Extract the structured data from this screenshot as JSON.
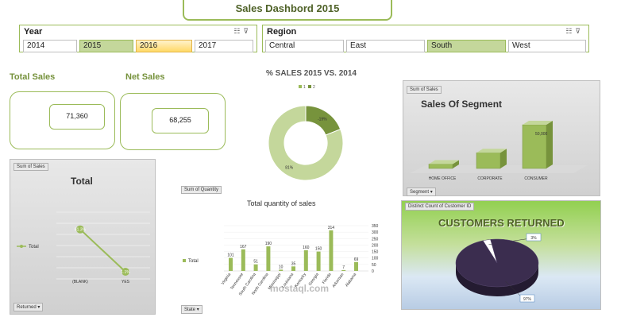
{
  "title": "Sales Dashbord  2015",
  "year_slicer": {
    "header": "Year",
    "items": [
      {
        "label": "2014",
        "state": "normal"
      },
      {
        "label": "2015",
        "state": "selected"
      },
      {
        "label": "2016",
        "state": "hover"
      },
      {
        "label": "2017",
        "state": "normal"
      }
    ]
  },
  "region_slicer": {
    "header": "Region",
    "items": [
      {
        "label": "Central",
        "state": "normal"
      },
      {
        "label": "East",
        "state": "normal"
      },
      {
        "label": "South",
        "state": "selected"
      },
      {
        "label": "West",
        "state": "normal"
      }
    ]
  },
  "kpis": {
    "total_sales_label": "Total Sales",
    "total_sales_value": "71,360",
    "net_sales_label": "Net Sales",
    "net_sales_value": "68,255"
  },
  "donut": {
    "title": "% SALES 2015 VS. 2014",
    "legend": [
      "1",
      "2"
    ],
    "labels": [
      "-19%",
      "81%"
    ]
  },
  "segment_panel": {
    "field_button": "Sum of Sales",
    "title": "Sales Of Segment",
    "filter_button": "Segment",
    "value_label": "50,000"
  },
  "total_panel": {
    "field_button": "Sum of Sales",
    "title": "Total",
    "legend": "Total",
    "point_labels": [
      "61.3%",
      "1.1%"
    ],
    "filter_button": "Returned"
  },
  "quantity_panel": {
    "field_button": "Sum of Quantity",
    "title": "Total  quantity of sales",
    "legend": "Total",
    "filter_button": "State"
  },
  "customers_panel": {
    "field_button": "Distinct Count of Customer ID",
    "title": "CUSTOMERS RETURNED",
    "labels": [
      "3%",
      "97%"
    ]
  },
  "watermark": "mostaql.com",
  "colors": {
    "accent": "#9bbb59",
    "accent_dark": "#76923c",
    "pie_dark": "#3b2d4f",
    "pie_light": "#ffffff"
  },
  "chart_data": [
    {
      "type": "pie",
      "subtype": "donut",
      "title": "% SALES 2015 VS. 2014",
      "categories": [
        "1",
        "2"
      ],
      "values": [
        19,
        81
      ],
      "data_labels": [
        "-19%",
        "81%"
      ]
    },
    {
      "type": "bar",
      "subtype": "3d-column",
      "title": "Sales Of Segment",
      "categories": [
        "HOME OFFICE",
        "CORPORATE",
        "CONSUMER"
      ],
      "values": [
        5000,
        18000,
        50000
      ],
      "ylim": [
        0,
        50000
      ]
    },
    {
      "type": "line",
      "title": "Total",
      "categories": [
        "(BLANK)",
        "YES"
      ],
      "series": [
        {
          "name": "Total",
          "values": [
            61.3,
            1.1
          ]
        }
      ],
      "data_labels": [
        "61.3%",
        "1.1%"
      ],
      "grid": true,
      "legend": "left"
    },
    {
      "type": "bar",
      "title": "Total  quantity of sales",
      "categories": [
        "Virginia",
        "Tennessee",
        "South Carolina",
        "North Carolina",
        "Mississippi",
        "Louisiana",
        "Kentucky",
        "Georgia",
        "Florida",
        "Arkansas",
        "Alabama"
      ],
      "series": [
        {
          "name": "Total",
          "values": [
            101,
            167,
            51,
            190,
            10,
            35,
            160,
            150,
            314,
            7,
            69
          ]
        }
      ],
      "data_labels": [
        "101",
        "167",
        "51",
        "190",
        "10",
        "35",
        "160",
        "150",
        "314",
        "7",
        "69"
      ],
      "yticks": [
        "0",
        "50",
        "100",
        "150",
        "200",
        "250",
        "300",
        "350"
      ],
      "ylim": [
        0,
        350
      ],
      "legend": "left"
    },
    {
      "type": "pie",
      "subtype": "3d",
      "title": "CUSTOMERS RETURNED",
      "categories": [
        "returned",
        "not returned"
      ],
      "values": [
        3,
        97
      ],
      "data_labels": [
        "3%",
        "97%"
      ]
    }
  ]
}
